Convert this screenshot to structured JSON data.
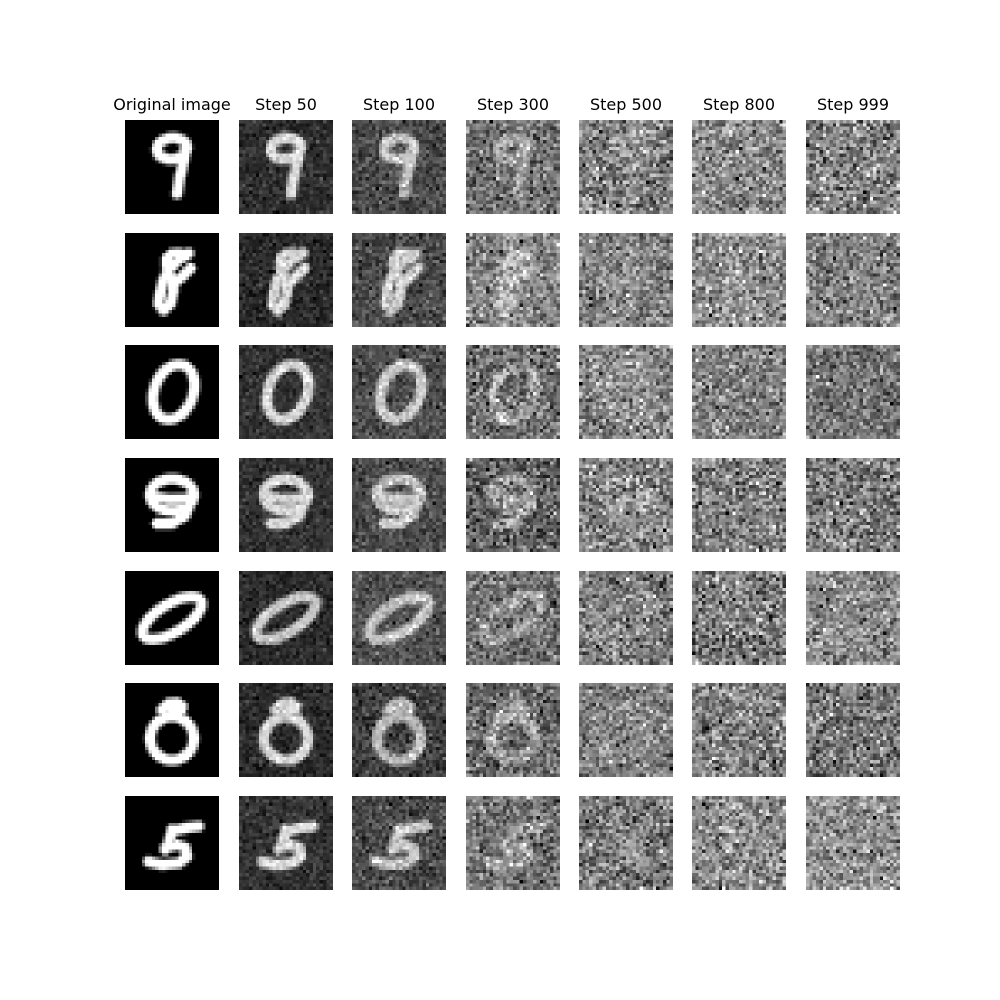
{
  "column_titles": [
    "Original image",
    "Step 50",
    "Step 100",
    "Step 300",
    "Step 500",
    "Step 800",
    "Step 999"
  ],
  "noise_steps": [
    0,
    50,
    100,
    300,
    500,
    800,
    999
  ],
  "digits": [
    "9",
    "8",
    "0",
    "9",
    "0",
    "0",
    "5"
  ]
}
